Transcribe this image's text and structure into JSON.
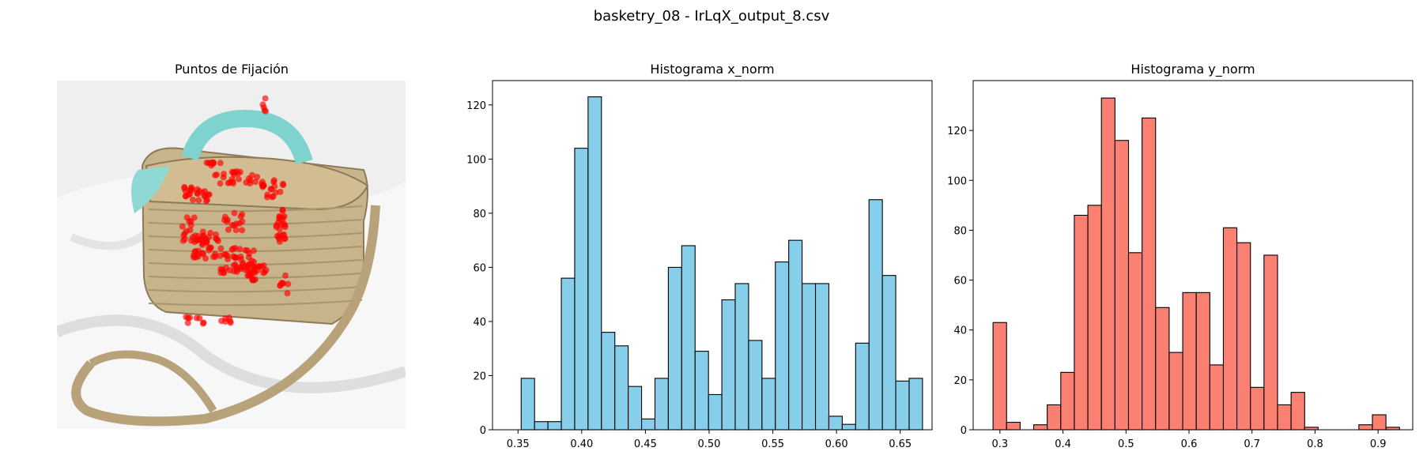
{
  "figure": {
    "suptitle": "basketry_08 - IrLqX_output_8.csv"
  },
  "image_panel": {
    "title": "Puntos de Fijación",
    "bg_color": "#efefef",
    "point_color": "#ff0000"
  },
  "chart_data": [
    {
      "type": "histogram",
      "title": "Histograma x_norm",
      "xlabel": "",
      "ylabel": "",
      "color": "#87ceeb",
      "edgecolor": "#000000",
      "xlim": [
        0.33,
        0.675
      ],
      "ylim": [
        0,
        129
      ],
      "bin_start": 0.3525,
      "bin_width": 0.0105,
      "counts": [
        19,
        3,
        3,
        56,
        104,
        123,
        36,
        31,
        16,
        4,
        19,
        60,
        68,
        29,
        13,
        48,
        54,
        33,
        19,
        62,
        70,
        54,
        54,
        5,
        2,
        32,
        85,
        57,
        18,
        19
      ],
      "xticks": [
        "0.35",
        "0.40",
        "0.45",
        "0.50",
        "0.55",
        "0.60",
        "0.65"
      ],
      "xtick_values": [
        0.35,
        0.4,
        0.45,
        0.5,
        0.55,
        0.6,
        0.65
      ],
      "yticks": [
        "0",
        "20",
        "40",
        "60",
        "80",
        "100",
        "120"
      ],
      "ytick_values": [
        0,
        20,
        40,
        60,
        80,
        100,
        120
      ]
    },
    {
      "type": "histogram",
      "title": "Histograma y_norm",
      "xlabel": "",
      "ylabel": "",
      "color": "#fa8072",
      "edgecolor": "#000000",
      "xlim": [
        0.2575,
        0.955
      ],
      "ylim": [
        0,
        140
      ],
      "bin_start": 0.289,
      "bin_width": 0.0215,
      "counts": [
        43,
        3,
        0,
        2,
        10,
        23,
        86,
        90,
        133,
        116,
        71,
        125,
        49,
        31,
        55,
        55,
        26,
        81,
        75,
        17,
        70,
        10,
        15,
        1,
        0,
        0,
        0,
        2,
        6,
        1
      ],
      "xticks": [
        "0.3",
        "0.4",
        "0.5",
        "0.6",
        "0.7",
        "0.8",
        "0.9"
      ],
      "xtick_values": [
        0.3,
        0.4,
        0.5,
        0.6,
        0.7,
        0.8,
        0.9
      ],
      "yticks": [
        "0",
        "20",
        "40",
        "60",
        "80",
        "100",
        "120"
      ],
      "ytick_values": [
        0,
        20,
        40,
        60,
        80,
        100,
        120
      ]
    }
  ]
}
